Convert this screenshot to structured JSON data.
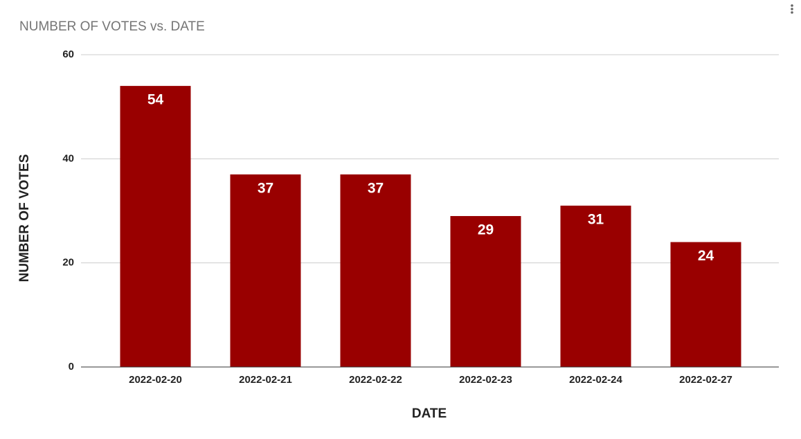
{
  "chart_data": {
    "type": "bar",
    "title": "NUMBER OF VOTES vs. DATE",
    "x_label": "DATE",
    "y_label": "NUMBER OF VOTES",
    "categories": [
      "2022-02-20",
      "2022-02-21",
      "2022-02-22",
      "2022-02-23",
      "2022-02-24",
      "2022-02-27"
    ],
    "values": [
      54,
      37,
      37,
      29,
      31,
      24
    ],
    "color": "#990000",
    "ylim": [
      0,
      60
    ],
    "yticks": [
      0,
      20,
      40,
      60
    ],
    "grid": true
  }
}
